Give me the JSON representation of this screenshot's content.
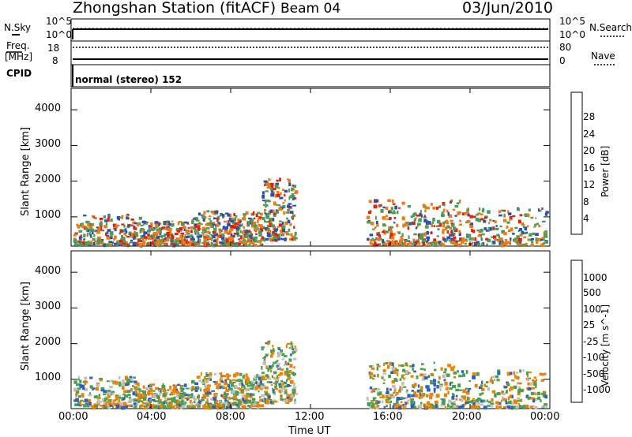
{
  "header": {
    "title": "Zhongshan Station (fitACF)",
    "beam": "Beam 04",
    "date": "03/Jun/2010"
  },
  "noise_panel": {
    "left_label": "N.Sky",
    "left_ticks": [
      "10^5",
      "10^0"
    ],
    "right_ticks": [
      "10^5",
      "10^0"
    ],
    "right_label": "N.Search"
  },
  "freq_panel": {
    "left_label_line1": "Freq.",
    "left_label_line2": "[MHz]",
    "left_ticks": [
      "18",
      "8"
    ],
    "right_ticks": [
      "80",
      "0"
    ],
    "right_label": "Nave"
  },
  "cpid_panel": {
    "label": "CPID",
    "mode_text": "normal (stereo) 152"
  },
  "chart_data": [
    {
      "type": "heatmap",
      "name": "power",
      "ylabel": "Slant Range [km]",
      "yticks": [
        "1000",
        "2000",
        "3000",
        "4000"
      ],
      "ylim": [
        180,
        4600
      ],
      "xlim_hours": [
        0,
        24
      ],
      "colorbar_label": "Power [dB]",
      "colorbar_ticks": [
        "4",
        "8",
        "12",
        "16",
        "20",
        "24",
        "28"
      ],
      "colorbar_colors": [
        "#1020e0",
        "#2850a8",
        "#3c8c64",
        "#50a850",
        "#a0c040",
        "#f0c020",
        "#f08000",
        "#f04000",
        "#e01010"
      ],
      "colors": {
        "weak": "#2a4fb0",
        "mid": "#4c9a5c",
        "strong": "#f07a10",
        "peak": "#e02010"
      }
    },
    {
      "type": "heatmap",
      "name": "velocity",
      "ylabel": "Slant Range [km]",
      "yticks": [
        "1000",
        "2000",
        "3000",
        "4000"
      ],
      "ylim": [
        180,
        4600
      ],
      "xlim_hours": [
        0,
        24
      ],
      "colorbar_label": "Velocity [m s^-1]",
      "colorbar_ticks": [
        "1000",
        "500",
        "100",
        "25",
        "-25",
        "-100",
        "-500",
        "-1000"
      ],
      "colorbar_colors": [
        "#1838c0",
        "#2870b0",
        "#3c9060",
        "#60c040",
        "#c8c8c0",
        "#f0b000",
        "#f08000",
        "#f04000",
        "#e01010"
      ],
      "colors": {
        "away": "#2a60c0",
        "slow": "#4aa050",
        "ground": "#c0c0b8",
        "toward": "#f08000"
      }
    }
  ],
  "time_axis": {
    "xlabel": "Time UT",
    "ticks": [
      "00:00",
      "04:00",
      "08:00",
      "12:00",
      "16:00",
      "20:00",
      "00:00"
    ]
  }
}
